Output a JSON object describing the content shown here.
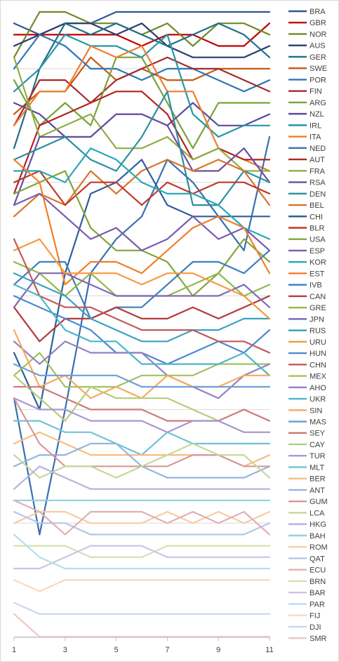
{
  "chart_data": {
    "type": "line",
    "title": "",
    "xlabel": "",
    "ylabel": "",
    "x": [
      1,
      2,
      3,
      4,
      5,
      6,
      7,
      8,
      9,
      10,
      11
    ],
    "x_ticks": [
      1,
      3,
      5,
      7,
      9,
      11
    ],
    "ylim": [
      1,
      56
    ],
    "y_reversed": true,
    "y_gridlines": [
      6,
      16,
      26,
      36,
      46,
      56
    ],
    "legend_position": "right",
    "series": [
      {
        "name": "BRA",
        "color": "#2f5597",
        "values": [
          2,
          3,
          2,
          2,
          1,
          1,
          1,
          1,
          1,
          1,
          1
        ]
      },
      {
        "name": "GBR",
        "color": "#c00000",
        "values": [
          3,
          3,
          3,
          3,
          3,
          4,
          3,
          3,
          4,
          4,
          2
        ]
      },
      {
        "name": "NOR",
        "color": "#70882a",
        "values": [
          5,
          1,
          1,
          2,
          2,
          3,
          2,
          4,
          2,
          2,
          3
        ]
      },
      {
        "name": "AUS",
        "color": "#2a3c6e",
        "values": [
          4,
          3,
          2,
          2,
          3,
          2,
          4,
          5,
          5,
          5,
          4
        ]
      },
      {
        "name": "GER",
        "color": "#1f6f86",
        "values": [
          13,
          6,
          2,
          3,
          2,
          3,
          4,
          3,
          2,
          3,
          5
        ]
      },
      {
        "name": "SWE",
        "color": "#c55a11",
        "values": [
          10,
          8,
          8,
          5,
          7,
          6,
          7,
          7,
          6,
          6,
          6
        ]
      },
      {
        "name": "POR",
        "color": "#2e75b6",
        "values": [
          6,
          3,
          4,
          6,
          6,
          7,
          6,
          6,
          7,
          8,
          7
        ]
      },
      {
        "name": "FIN",
        "color": "#a52a2a",
        "values": [
          11,
          7,
          7,
          9,
          7,
          6,
          5,
          6,
          6,
          7,
          8
        ]
      },
      {
        "name": "ARG",
        "color": "#7aa23b",
        "values": [
          7,
          11,
          9,
          11,
          5,
          5,
          9,
          13,
          9,
          9,
          9
        ]
      },
      {
        "name": "NZL",
        "color": "#5b4a9e",
        "values": [
          9,
          10,
          12,
          12,
          10,
          10,
          11,
          9,
          11,
          11,
          10
        ]
      },
      {
        "name": "IRL",
        "color": "#2596a8",
        "values": [
          8,
          6,
          3,
          4,
          4,
          5,
          3,
          10,
          12,
          11,
          11
        ]
      },
      {
        "name": "ITA",
        "color": "#ed7d31",
        "values": [
          11,
          8,
          8,
          4,
          5,
          4,
          8,
          8,
          13,
          14,
          15
        ]
      },
      {
        "name": "NED",
        "color": "#3b6fb0",
        "values": [
          35,
          47,
          36,
          24,
          21,
          19,
          14,
          16,
          19,
          22,
          12
        ]
      },
      {
        "name": "AUT",
        "color": "#b22222",
        "values": [
          17,
          11,
          10,
          9,
          8,
          8,
          10,
          14,
          13,
          14,
          14
        ]
      },
      {
        "name": "FRA",
        "color": "#8fae45",
        "values": [
          5,
          12,
          11,
          10,
          13,
          13,
          12,
          14,
          13,
          15,
          15
        ]
      },
      {
        "name": "RSA",
        "color": "#6a4fa3",
        "values": [
          18,
          12,
          12,
          12,
          10,
          10,
          11,
          15,
          15,
          13,
          16
        ]
      },
      {
        "name": "DEN",
        "color": "#2a8fa0",
        "values": [
          14,
          13,
          12,
          14,
          15,
          12,
          8,
          18,
          18,
          15,
          16
        ]
      },
      {
        "name": "BEL",
        "color": "#d9742c",
        "values": [
          19,
          17,
          18,
          15,
          17,
          15,
          14,
          15,
          14,
          15,
          18
        ]
      },
      {
        "name": "CHI",
        "color": "#2e5f9a",
        "values": [
          31,
          36,
          24,
          17,
          16,
          14,
          18,
          19,
          19,
          19,
          19
        ]
      },
      {
        "name": "BLR",
        "color": "#c0392b",
        "values": [
          16,
          15,
          18,
          16,
          16,
          18,
          16,
          17,
          16,
          16,
          17
        ]
      },
      {
        "name": "USA",
        "color": "#80a63e",
        "values": [
          17,
          16,
          15,
          20,
          22,
          22,
          23,
          26,
          24,
          21,
          23
        ]
      },
      {
        "name": "ESP",
        "color": "#7a5bb0",
        "values": [
          18,
          17,
          19,
          21,
          20,
          22,
          21,
          19,
          21,
          20,
          22
        ]
      },
      {
        "name": "KOR",
        "color": "#2aa7b8",
        "values": [
          15,
          15,
          16,
          13,
          14,
          16,
          17,
          17,
          18,
          20,
          21
        ]
      },
      {
        "name": "EST",
        "color": "#f07f2a",
        "values": [
          14,
          16,
          25,
          23,
          23,
          24,
          22,
          20,
          19,
          20,
          24
        ]
      },
      {
        "name": "IVB",
        "color": "#3a7fc0",
        "values": [
          25,
          23,
          23,
          28,
          27,
          27,
          25,
          23,
          23,
          24,
          22
        ]
      },
      {
        "name": "CAN",
        "color": "#b23a3a",
        "values": [
          27,
          30,
          28,
          28,
          27,
          28,
          28,
          27,
          28,
          27,
          26
        ]
      },
      {
        "name": "GRE",
        "color": "#95b74c",
        "values": [
          23,
          24,
          26,
          24,
          26,
          26,
          26,
          25,
          24,
          26,
          25
        ]
      },
      {
        "name": "JPN",
        "color": "#8068b8",
        "values": [
          27,
          24,
          24,
          25,
          26,
          26,
          26,
          26,
          26,
          25,
          27
        ]
      },
      {
        "name": "RUS",
        "color": "#3aa3c0",
        "values": [
          24,
          25,
          26,
          28,
          29,
          30,
          30,
          29,
          29,
          28,
          28
        ]
      },
      {
        "name": "URU",
        "color": "#f59a40",
        "values": [
          22,
          21,
          24,
          24,
          24,
          25,
          24,
          24,
          25,
          26,
          28
        ]
      },
      {
        "name": "HUN",
        "color": "#4a8ad0",
        "values": [
          26,
          27,
          28,
          29,
          31,
          31,
          32,
          31,
          30,
          31,
          29
        ]
      },
      {
        "name": "CHN",
        "color": "#c25a5a",
        "values": [
          21,
          26,
          27,
          27,
          28,
          29,
          29,
          29,
          30,
          30,
          31
        ]
      },
      {
        "name": "MEX",
        "color": "#a3c160",
        "values": [
          33,
          31,
          34,
          34,
          34,
          33,
          33,
          33,
          32,
          32,
          32
        ]
      },
      {
        "name": "AHO",
        "color": "#9480c4",
        "values": [
          30,
          32,
          30,
          31,
          31,
          31,
          33,
          34,
          35,
          33,
          32
        ]
      },
      {
        "name": "UKR",
        "color": "#4fb3cc",
        "values": [
          25,
          26,
          29,
          30,
          30,
          32,
          32,
          32,
          32,
          31,
          33
        ]
      },
      {
        "name": "SIN",
        "color": "#f7ab5a",
        "values": [
          29,
          34,
          33,
          35,
          34,
          35,
          33,
          34,
          34,
          33,
          33
        ]
      },
      {
        "name": "MAS",
        "color": "#6f9fd8",
        "values": [
          32,
          33,
          33,
          33,
          33,
          34,
          34,
          34,
          34,
          34,
          34
        ]
      },
      {
        "name": "SEY",
        "color": "#cf7a7a",
        "values": [
          34,
          34,
          35,
          36,
          36,
          36,
          37,
          37,
          37,
          36,
          37
        ]
      },
      {
        "name": "CAY",
        "color": "#b5cd78",
        "values": [
          33,
          35,
          37,
          34,
          35,
          35,
          35,
          36,
          37,
          38,
          38
        ]
      },
      {
        "name": "TUR",
        "color": "#a898d0",
        "values": [
          35,
          36,
          36,
          37,
          37,
          37,
          38,
          37,
          37,
          38,
          38
        ]
      },
      {
        "name": "MLT",
        "color": "#6ec3d6",
        "values": [
          37,
          37,
          38,
          38,
          39,
          40,
          38,
          39,
          39,
          39,
          39
        ]
      },
      {
        "name": "BER",
        "color": "#f8bd80",
        "values": [
          39,
          38,
          39,
          40,
          40,
          40,
          40,
          40,
          40,
          41,
          40
        ]
      },
      {
        "name": "ANT",
        "color": "#94b5e0",
        "values": [
          41,
          40,
          40,
          39,
          39,
          41,
          42,
          42,
          42,
          42,
          41
        ]
      },
      {
        "name": "GUM",
        "color": "#d89898",
        "values": [
          35,
          39,
          41,
          41,
          41,
          41,
          41,
          40,
          40,
          41,
          41
        ]
      },
      {
        "name": "LCA",
        "color": "#c6d89a",
        "values": [
          40,
          42,
          41,
          41,
          42,
          41,
          40,
          39,
          40,
          40,
          42
        ]
      },
      {
        "name": "HKG",
        "color": "#bcb0dc",
        "values": [
          43,
          41,
          42,
          43,
          43,
          43,
          43,
          43,
          43,
          43,
          43
        ]
      },
      {
        "name": "BAH",
        "color": "#90d0e0",
        "values": [
          44,
          44,
          44,
          44,
          44,
          44,
          44,
          44,
          44,
          44,
          44
        ]
      },
      {
        "name": "ROM",
        "color": "#f9cca0",
        "values": [
          46,
          45,
          45,
          46,
          46,
          46,
          45,
          46,
          45,
          46,
          45
        ]
      },
      {
        "name": "QAT",
        "color": "#b0c8ea",
        "values": [
          45,
          46,
          46,
          47,
          47,
          47,
          47,
          47,
          47,
          47,
          46
        ]
      },
      {
        "name": "ECU",
        "color": "#e0b0b0",
        "values": [
          44,
          45,
          47,
          45,
          45,
          45,
          46,
          45,
          46,
          45,
          47
        ]
      },
      {
        "name": "BRN",
        "color": "#d2e2b0",
        "values": [
          48,
          48,
          48,
          49,
          49,
          49,
          48,
          48,
          48,
          48,
          48
        ]
      },
      {
        "name": "BAR",
        "color": "#ccc4e6",
        "values": [
          50,
          50,
          49,
          48,
          48,
          48,
          49,
          49,
          49,
          49,
          49
        ]
      },
      {
        "name": "PAR",
        "color": "#b2e0ea",
        "values": [
          47,
          49,
          50,
          50,
          50,
          50,
          50,
          50,
          50,
          50,
          50
        ]
      },
      {
        "name": "FIJ",
        "color": "#fbd9b8",
        "values": [
          51,
          52,
          51,
          51,
          51,
          51,
          51,
          51,
          51,
          51,
          51
        ]
      },
      {
        "name": "DJI",
        "color": "#c8d8f0",
        "values": [
          53,
          54,
          54,
          54,
          54,
          54,
          54,
          54,
          54,
          54,
          54
        ]
      },
      {
        "name": "SMR",
        "color": "#ecc8c8",
        "values": [
          54,
          56,
          56,
          56,
          56,
          56,
          56,
          56,
          56,
          56,
          56
        ]
      }
    ]
  }
}
